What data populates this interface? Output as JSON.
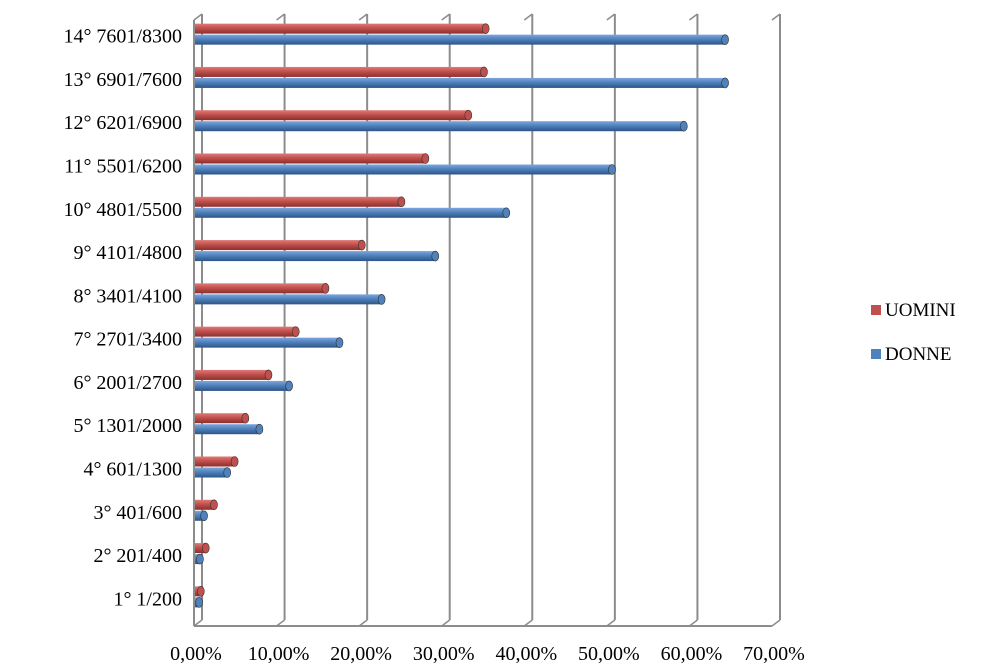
{
  "chart_data": {
    "type": "bar",
    "orientation": "horizontal",
    "categories": [
      "1° 1/200",
      "2° 201/400",
      "3° 401/600",
      "4° 601/1300",
      "5° 1301/2000",
      "6° 2001/2700",
      "7° 2701/3400",
      "8° 3401/4100",
      "9° 4101/4800",
      "10° 4801/5500",
      "11° 5501/6200",
      "12° 6201/6900",
      "13° 6901/7600",
      "14° 7601/8300"
    ],
    "series": [
      {
        "name": "UOMINI",
        "color": "#c0504d",
        "values": [
          0.7,
          1.3,
          2.3,
          4.8,
          6.1,
          8.9,
          12.2,
          15.8,
          20.2,
          25.0,
          27.9,
          33.1,
          35.0,
          35.2
        ]
      },
      {
        "name": "DONNE",
        "color": "#4f81bd",
        "values": [
          0.5,
          0.6,
          1.1,
          3.9,
          7.8,
          11.4,
          17.5,
          22.6,
          29.1,
          37.7,
          50.5,
          59.2,
          64.2,
          64.2
        ]
      }
    ],
    "xlim": [
      0,
      70
    ],
    "x_ticks": [
      "0,00%",
      "10,00%",
      "20,00%",
      "30,00%",
      "40,00%",
      "50,00%",
      "60,00%",
      "70,00%"
    ],
    "grid": true,
    "legend_position": "right",
    "legend": [
      "UOMINI",
      "DONNE"
    ],
    "title": "",
    "xlabel": "",
    "ylabel": ""
  }
}
